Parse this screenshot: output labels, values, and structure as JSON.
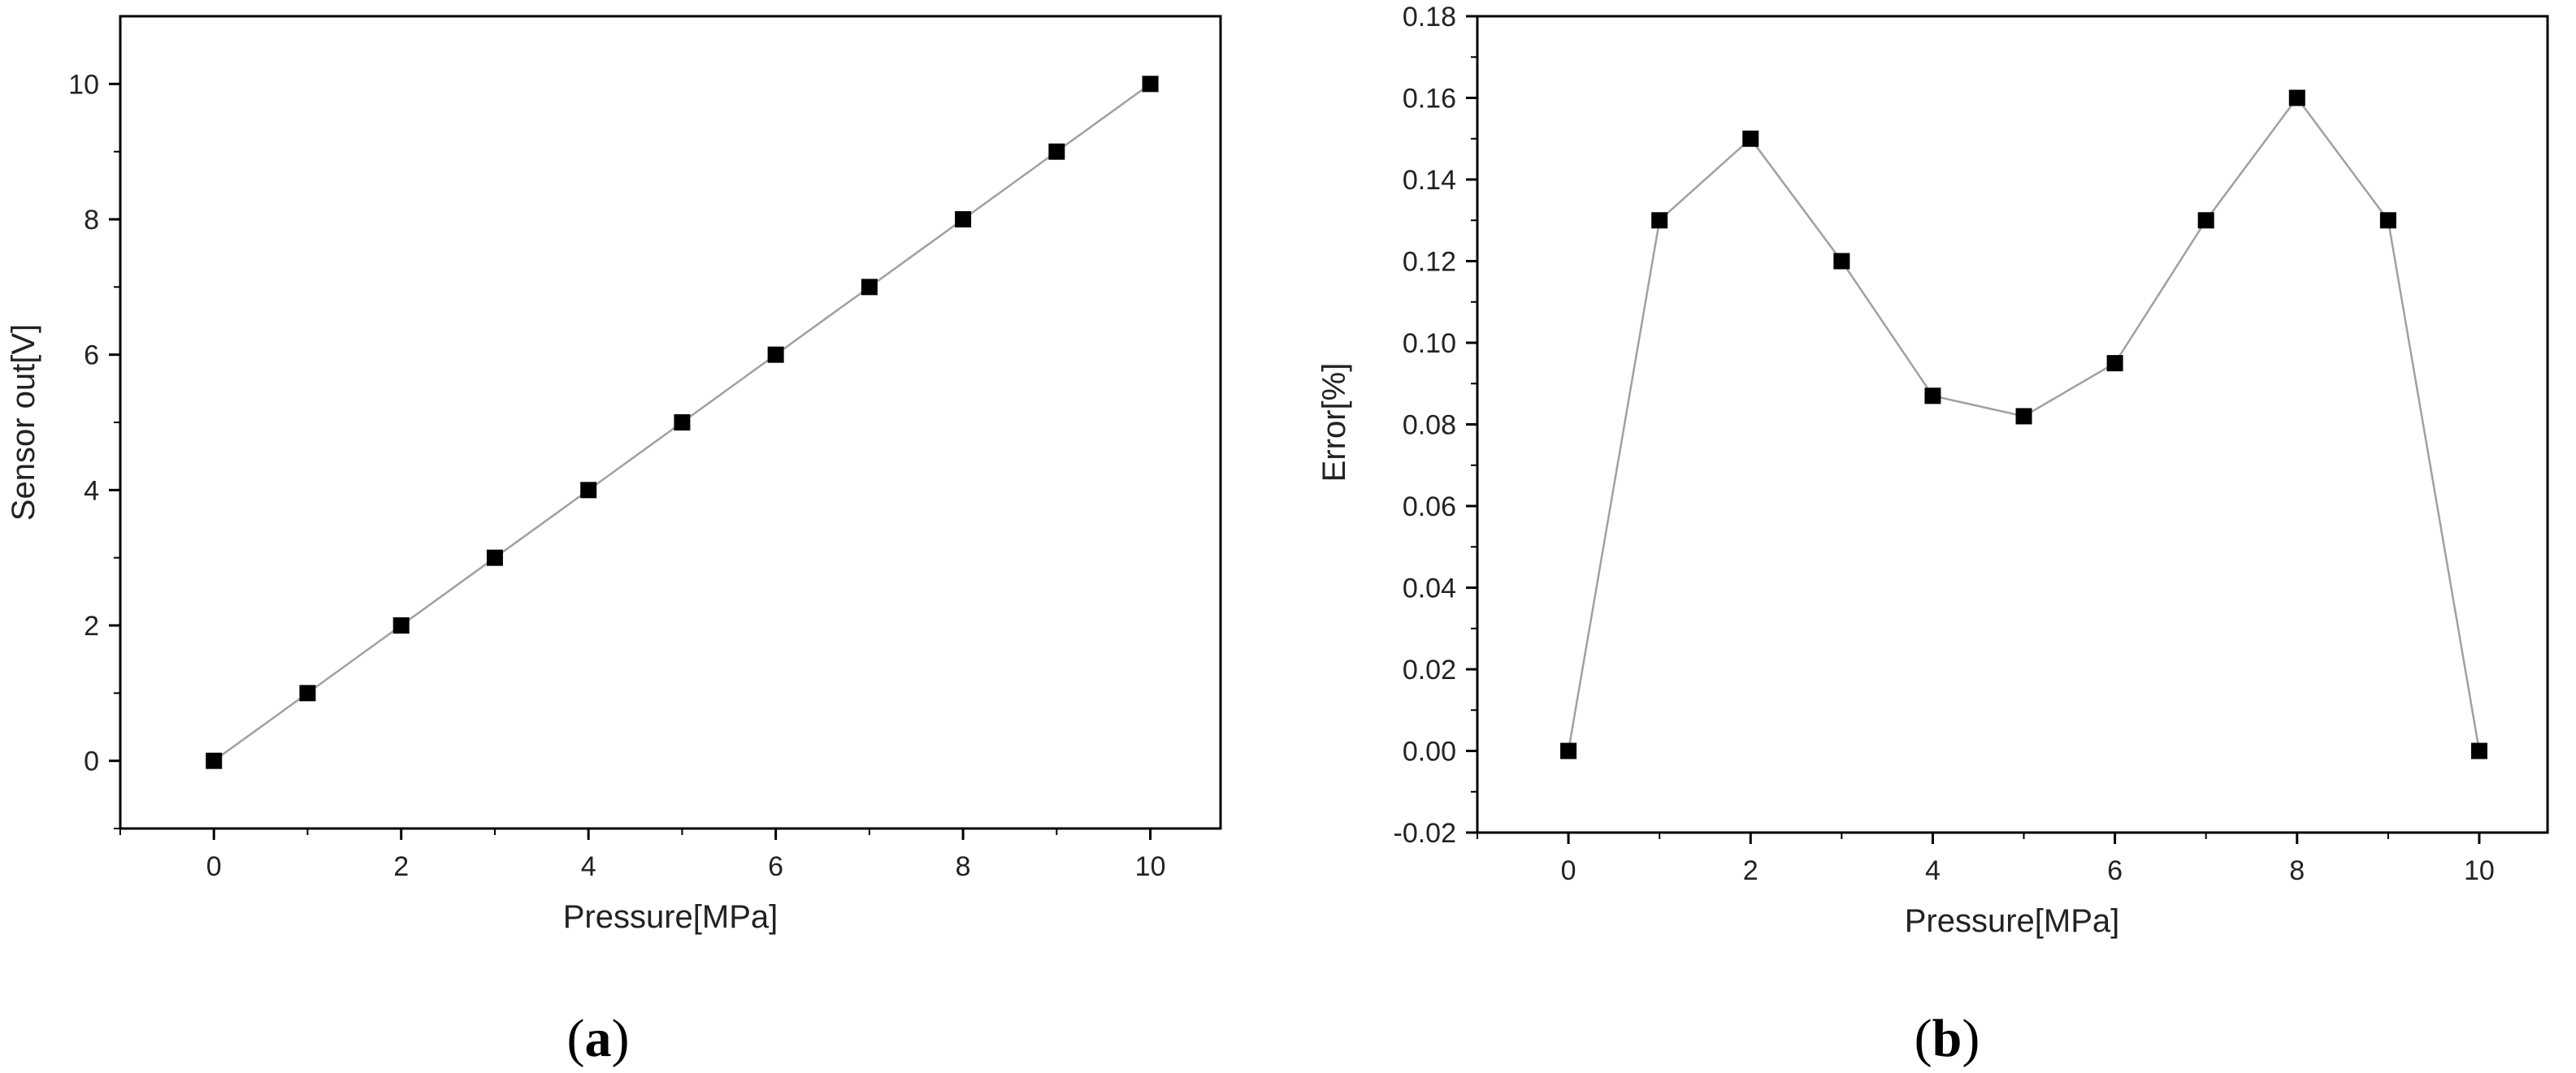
{
  "chart_data": [
    {
      "type": "line",
      "panel_label": "a",
      "xlabel": "Pressure[MPa]",
      "ylabel": "Sensor out[V]",
      "xlim": [
        -1,
        10.75
      ],
      "ylim": [
        -1,
        11
      ],
      "xticks": [
        0,
        2,
        4,
        6,
        8,
        10
      ],
      "yticks": [
        0,
        2,
        4,
        6,
        8,
        10
      ],
      "ytick_labels": [
        "0",
        "2",
        "4",
        "6",
        "8",
        "10"
      ],
      "grid": false,
      "marker": "square",
      "line_color": "#a0a0a0",
      "marker_color": "#000000",
      "x": [
        0,
        1,
        2,
        3,
        4,
        5,
        6,
        7,
        8,
        9,
        10
      ],
      "y": [
        0,
        1,
        2,
        3,
        4,
        5,
        6,
        7,
        8,
        9,
        10
      ]
    },
    {
      "type": "line",
      "panel_label": "b",
      "xlabel": "Pressure[MPa]",
      "ylabel": "Error[%]",
      "xlim": [
        -1,
        10.75
      ],
      "ylim": [
        -0.02,
        0.18
      ],
      "xticks": [
        0,
        2,
        4,
        6,
        8,
        10
      ],
      "yticks": [
        -0.02,
        0,
        0.02,
        0.04,
        0.06,
        0.08,
        0.1,
        0.12,
        0.14,
        0.16,
        0.18
      ],
      "ytick_labels": [
        "-0.02",
        "0.00",
        "0.02",
        "0.04",
        "0.06",
        "0.08",
        "0.10",
        "0.12",
        "0.14",
        "0.16",
        "0.18"
      ],
      "grid": false,
      "marker": "square",
      "line_color": "#a0a0a0",
      "marker_color": "#000000",
      "x": [
        0,
        1,
        2,
        3,
        4,
        5,
        6,
        7,
        8,
        9,
        10
      ],
      "y": [
        0,
        0.13,
        0.15,
        0.12,
        0.087,
        0.082,
        0.095,
        0.13,
        0.16,
        0.13,
        0
      ]
    }
  ],
  "panel_labels": {
    "a": {
      "open": "(",
      "letter": "a",
      "close": ")"
    },
    "b": {
      "open": "(",
      "letter": "b",
      "close": ")"
    }
  }
}
